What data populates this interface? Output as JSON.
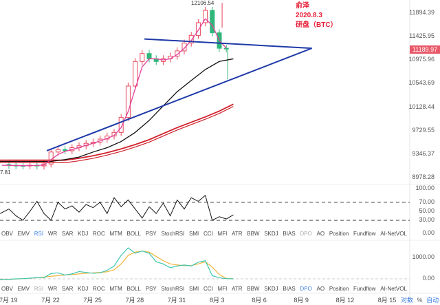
{
  "annotation": {
    "line1": "俞泽",
    "line2": "2020.8.3",
    "line3": "研盘（BTC）"
  },
  "high_label": "12106.54",
  "low_label": "7.81",
  "last_price": "11189.97",
  "price_axis": [
    "11894.39",
    "11425.95",
    "10975.96",
    "10543.69",
    "10128.44",
    "9729.55",
    "9346.37",
    "8978.28"
  ],
  "rsi_axis": [
    "100.00",
    "70.00",
    "50.00",
    "30.00",
    "0.00"
  ],
  "lower_axis": [
    "1000.00",
    "0.00"
  ],
  "indicators": [
    "OBV",
    "EMV",
    "RSI",
    "WR",
    "SAR",
    "KDJ",
    "ROC",
    "MTM",
    "BOLL",
    "PSY",
    "StochRSI",
    "SMI",
    "CCI",
    "MFI",
    "ATR",
    "BBW",
    "SKDJ",
    "BIAS",
    "DPO",
    "AO",
    "Position",
    "Fundflow",
    "AI-NetVOL"
  ],
  "toolbar1_active": "RSI",
  "toolbar2_active": "DPO",
  "dates": [
    "7月 19",
    "7月 22",
    "7月 25",
    "7月 28",
    "7月 31",
    "8月 3",
    "8月 6",
    "8月 9",
    "8月 12",
    "8月 15"
  ],
  "scale_buttons": {
    "log": "对数",
    "pct": "%",
    "auto": "自动"
  },
  "colors": {
    "up": "#e8475b",
    "down": "#2fb67a",
    "trend": "#1f3aa8",
    "ma_short": "#e0409a",
    "ma_mid": "#111111",
    "ma_long": "#d0202a",
    "teal": "#3cc6b0",
    "orange": "#f0b43c"
  },
  "chart_data": {
    "type": "line",
    "title": "BTC",
    "x_unit": "days since 7月19",
    "close_step": 0.5,
    "close": [
      9180,
      9170,
      9165,
      9160,
      9170,
      9160,
      9190,
      9380,
      9420,
      9400,
      9450,
      9480,
      9520,
      9540,
      9590,
      9640,
      9700,
      9950,
      10500,
      10950,
      11100,
      11000,
      10950,
      11000,
      11050,
      11150,
      11300,
      11450,
      11700,
      11950,
      11500,
      11200,
      11190
    ],
    "ma_short": [
      9170,
      9168,
      9165,
      9163,
      9165,
      9165,
      9175,
      9260,
      9340,
      9390,
      9420,
      9450,
      9490,
      9520,
      9560,
      9600,
      9650,
      9780,
      10050,
      10450,
      10850,
      11000,
      11000,
      10980,
      11000,
      11080,
      11200,
      11350,
      11550,
      11780,
      11650,
      11350,
      11200
    ],
    "ma_mid": [
      9230,
      9230,
      9230,
      9230,
      9260,
      9300,
      9380,
      9450,
      9550,
      9700,
      9900,
      10150,
      10400,
      10600,
      10800,
      10950,
      11000
    ],
    "ma_long1": [
      9250,
      9250,
      9250,
      9250,
      9250,
      9280,
      9320,
      9370,
      9430,
      9500,
      9580,
      9680,
      9780,
      9870,
      9960,
      10060,
      10180
    ],
    "ma_long2": [
      9210,
      9210,
      9210,
      9210,
      9210,
      9240,
      9280,
      9330,
      9390,
      9460,
      9540,
      9640,
      9740,
      9830,
      9920,
      10020,
      10140
    ],
    "trendlines": [
      {
        "from": [
          9.66,
          11380
        ],
        "to": [
          21.6,
          11200
        ]
      },
      {
        "from": [
          2.7,
          9400
        ],
        "to": [
          21.6,
          11200
        ]
      }
    ],
    "price_range": [
      8978.28,
      11894.39
    ],
    "rsi": {
      "start": -0.5,
      "step": 0.5,
      "values": [
        45,
        55,
        40,
        30,
        50,
        72,
        45,
        30,
        70,
        55,
        62,
        48,
        65,
        58,
        70,
        45,
        80,
        60,
        75,
        55,
        35,
        60,
        45,
        68,
        40,
        75,
        55,
        80,
        72,
        85,
        30,
        38,
        33,
        42
      ],
      "levels": [
        70,
        30
      ]
    },
    "lower": {
      "start": -0.5,
      "step": 0.5,
      "teal": [
        -40,
        -20,
        0,
        10,
        30,
        60,
        50,
        250,
        280,
        180,
        230,
        340,
        300,
        260,
        280,
        400,
        600,
        1100,
        1450,
        1200,
        1300,
        1200,
        800,
        700,
        520,
        600,
        650,
        600,
        780,
        850,
        150,
        50,
        10,
        0
      ],
      "orange": [
        -50,
        -30,
        -10,
        10,
        30,
        50,
        80,
        120,
        150,
        180,
        200,
        230,
        260,
        280,
        300,
        330,
        420,
        700,
        1100,
        1250,
        1300,
        1250,
        1050,
        850,
        700,
        650,
        620,
        620,
        700,
        800,
        550,
        200,
        20,
        0
      ]
    }
  }
}
